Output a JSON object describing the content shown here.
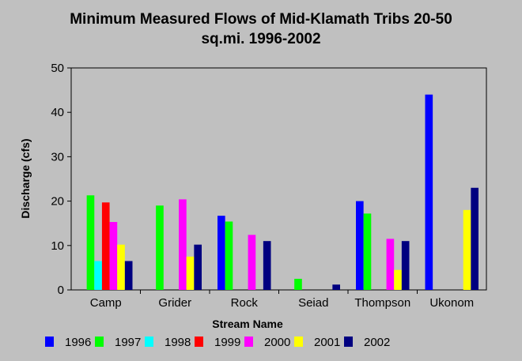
{
  "chart_data": {
    "type": "bar",
    "title_line1": "Minimum Measured Flows of Mid-Klamath Tribs 20-50",
    "title_line2": "sq.mi. 1996-2002",
    "xlabel": "Stream Name",
    "ylabel": "Discharge (cfs)",
    "ylim": [
      0,
      50
    ],
    "yticks": [
      "0",
      "10",
      "20",
      "30",
      "40",
      "50"
    ],
    "grid": false,
    "legend_position": "bottom",
    "categories": [
      "Camp",
      "Grider",
      "Rock",
      "Seiad",
      "Thompson",
      "Ukonom"
    ],
    "series": [
      {
        "name": "1996",
        "color": "#0000ff",
        "values": [
          null,
          null,
          16.7,
          null,
          20,
          44
        ]
      },
      {
        "name": "1997",
        "color": "#00ff00",
        "values": [
          21.3,
          19,
          15.4,
          2.5,
          17.2,
          null
        ]
      },
      {
        "name": "1998",
        "color": "#00ffff",
        "values": [
          6.5,
          null,
          null,
          null,
          null,
          null
        ]
      },
      {
        "name": "1999",
        "color": "#ff0000",
        "values": [
          19.7,
          null,
          null,
          null,
          null,
          null
        ]
      },
      {
        "name": "2000",
        "color": "#ff00ff",
        "values": [
          15.3,
          20.4,
          12.4,
          null,
          11.5,
          null
        ]
      },
      {
        "name": "2001",
        "color": "#ffff00",
        "values": [
          10.2,
          7.5,
          null,
          null,
          4.5,
          18
        ]
      },
      {
        "name": "2002",
        "color": "#000080",
        "values": [
          6.5,
          10.2,
          11,
          1.2,
          11,
          23
        ]
      }
    ]
  }
}
